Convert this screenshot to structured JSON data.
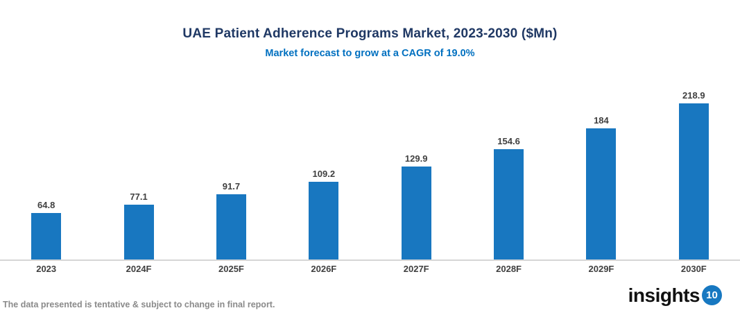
{
  "header": {
    "title": "UAE Patient Adherence Programs Market, 2023-2030 ($Mn)",
    "subtitle": "Market forecast to grow at a CAGR of 19.0%",
    "title_color": "#1f3864",
    "subtitle_color": "#0070c0"
  },
  "chart_data": {
    "type": "bar",
    "title": "UAE Patient Adherence Programs Market, 2023-2030 ($Mn)",
    "subtitle": "Market forecast to grow at a CAGR of 19.0%",
    "categories": [
      "2023",
      "2024F",
      "2025F",
      "2026F",
      "2027F",
      "2028F",
      "2029F",
      "2030F"
    ],
    "values": [
      64.8,
      77.1,
      91.7,
      109.2,
      129.9,
      154.6,
      184,
      218.9
    ],
    "data_labels": [
      "64.8",
      "77.1",
      "91.7",
      "109.2",
      "129.9",
      "154.6",
      "184",
      "218.9"
    ],
    "xlabel": "",
    "ylabel": "",
    "ylim": [
      0,
      230
    ],
    "grid": false,
    "legend": false,
    "bar_color": "#1877c0",
    "axis_line_color": "#d6d6d6",
    "data_label_color": "#404040",
    "tick_label_color": "#3f3f3f"
  },
  "footer": {
    "disclaimer": "The data presented is tentative & subject to change in final report.",
    "logo_text": "insights",
    "logo_badge": "10",
    "logo_badge_color": "#1778c1"
  }
}
